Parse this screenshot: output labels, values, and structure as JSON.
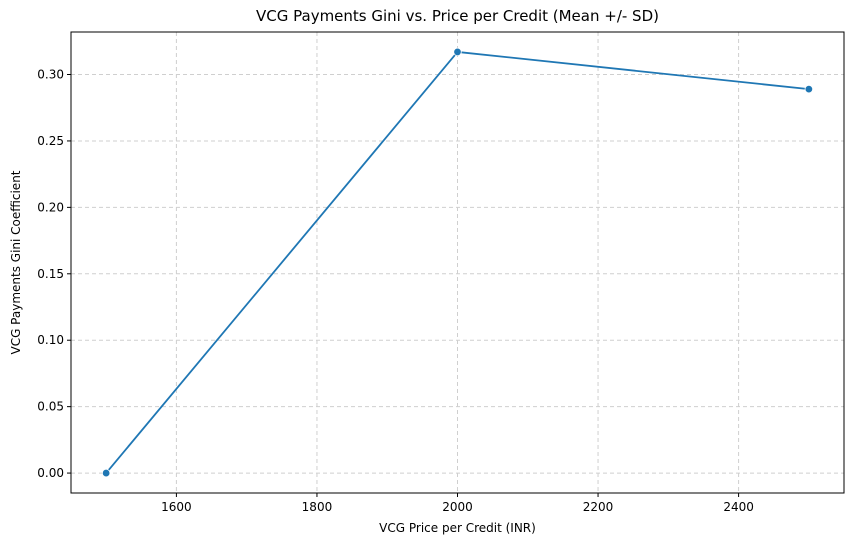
{
  "chart_data": {
    "type": "line",
    "title": "VCG Payments Gini vs. Price per Credit (Mean +/- SD)",
    "xlabel": "VCG Price per Credit (INR)",
    "ylabel": "VCG Payments Gini Coefficient",
    "xlim": [
      1450,
      2550
    ],
    "ylim": [
      -0.015,
      0.332
    ],
    "xticks": [
      1600,
      1800,
      2000,
      2200,
      2400
    ],
    "yticks": [
      0.0,
      0.05,
      0.1,
      0.15,
      0.2,
      0.25,
      0.3
    ],
    "xtick_labels": [
      "1600",
      "1800",
      "2000",
      "2200",
      "2400"
    ],
    "ytick_labels": [
      "0.00",
      "0.05",
      "0.10",
      "0.15",
      "0.20",
      "0.25",
      "0.30"
    ],
    "grid": true,
    "series": [
      {
        "color": "#1f77b4",
        "marker": "circle",
        "x": [
          1500,
          2000,
          2500
        ],
        "y": [
          0.0,
          0.317,
          0.289
        ]
      }
    ]
  }
}
